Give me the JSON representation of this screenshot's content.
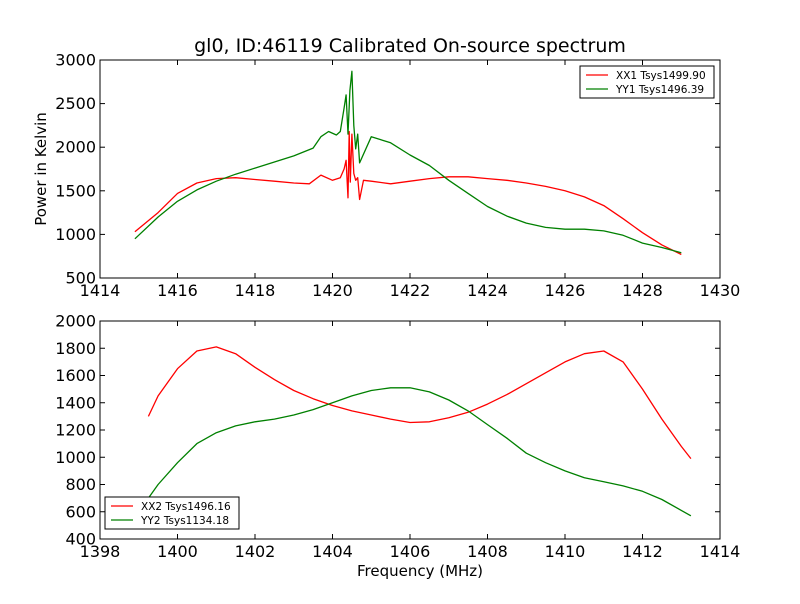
{
  "figure": {
    "title": "gl0, ID:46119 Calibrated On-source spectrum"
  },
  "chart_data": [
    {
      "type": "line",
      "xlabel": "",
      "ylabel": "Power in Kelvin",
      "xlim": [
        1414,
        1430
      ],
      "ylim": [
        500,
        3000
      ],
      "xticks": [
        1414,
        1416,
        1418,
        1420,
        1422,
        1424,
        1426,
        1428,
        1430
      ],
      "yticks": [
        500,
        1000,
        1500,
        2000,
        2500,
        3000
      ],
      "legend_position": "top-right",
      "grid": false,
      "series": [
        {
          "name": "XX1 Tsys1499.90",
          "color": "#ff0000",
          "x": [
            1414.9,
            1415.5,
            1416.0,
            1416.5,
            1417.0,
            1417.5,
            1418.0,
            1418.5,
            1419.0,
            1419.4,
            1419.7,
            1420.0,
            1420.2,
            1420.3,
            1420.35,
            1420.4,
            1420.43,
            1420.46,
            1420.5,
            1420.55,
            1420.6,
            1420.65,
            1420.7,
            1420.8,
            1421.0,
            1421.5,
            1422.0,
            1422.5,
            1423.0,
            1423.5,
            1424.0,
            1424.5,
            1425.0,
            1425.5,
            1426.0,
            1426.5,
            1427.0,
            1427.5,
            1428.0,
            1428.5,
            1429.0
          ],
          "y": [
            1030,
            1250,
            1470,
            1590,
            1640,
            1650,
            1630,
            1610,
            1590,
            1580,
            1680,
            1620,
            1650,
            1750,
            1850,
            1420,
            2180,
            1600,
            2150,
            1700,
            1620,
            1650,
            1400,
            1620,
            1610,
            1580,
            1610,
            1640,
            1660,
            1660,
            1640,
            1620,
            1590,
            1550,
            1500,
            1430,
            1330,
            1180,
            1020,
            880,
            770
          ]
        },
        {
          "name": "YY1 Tsys1496.39",
          "color": "#008000",
          "x": [
            1414.9,
            1415.5,
            1416.0,
            1416.5,
            1417.0,
            1417.5,
            1418.0,
            1418.5,
            1419.0,
            1419.5,
            1419.7,
            1419.9,
            1420.1,
            1420.2,
            1420.3,
            1420.35,
            1420.4,
            1420.45,
            1420.5,
            1420.55,
            1420.6,
            1420.65,
            1420.7,
            1421.0,
            1421.5,
            1422.0,
            1422.5,
            1423.0,
            1423.5,
            1424.0,
            1424.5,
            1425.0,
            1425.5,
            1426.0,
            1426.5,
            1427.0,
            1427.5,
            1428.0,
            1428.5,
            1429.0
          ],
          "y": [
            950,
            1200,
            1380,
            1510,
            1610,
            1690,
            1760,
            1830,
            1900,
            1990,
            2120,
            2180,
            2140,
            2180,
            2450,
            2600,
            2150,
            2650,
            2870,
            2250,
            1980,
            2150,
            1820,
            2120,
            2050,
            1910,
            1790,
            1620,
            1470,
            1320,
            1210,
            1130,
            1080,
            1060,
            1060,
            1040,
            990,
            900,
            850,
            790
          ]
        }
      ]
    },
    {
      "type": "line",
      "xlabel": "Frequency (MHz)",
      "ylabel": "",
      "xlim": [
        1398,
        1414
      ],
      "ylim": [
        400,
        2000
      ],
      "xticks": [
        1398,
        1400,
        1402,
        1404,
        1406,
        1408,
        1410,
        1412,
        1414
      ],
      "yticks": [
        400,
        600,
        800,
        1000,
        1200,
        1400,
        1600,
        1800,
        2000
      ],
      "legend_position": "bottom-left",
      "grid": false,
      "series": [
        {
          "name": "XX2 Tsys1496.16",
          "color": "#ff0000",
          "x": [
            1399.25,
            1399.5,
            1400.0,
            1400.5,
            1401.0,
            1401.5,
            1402.0,
            1402.5,
            1403.0,
            1403.5,
            1404.0,
            1404.5,
            1405.0,
            1405.5,
            1406.0,
            1406.5,
            1407.0,
            1407.5,
            1408.0,
            1408.5,
            1409.0,
            1409.5,
            1410.0,
            1410.5,
            1411.0,
            1411.5,
            1412.0,
            1412.5,
            1413.0,
            1413.25
          ],
          "y": [
            1300,
            1450,
            1650,
            1780,
            1810,
            1760,
            1660,
            1570,
            1490,
            1430,
            1380,
            1340,
            1310,
            1280,
            1255,
            1260,
            1290,
            1330,
            1390,
            1460,
            1540,
            1620,
            1700,
            1760,
            1780,
            1700,
            1500,
            1280,
            1080,
            990
          ]
        },
        {
          "name": "YY2 Tsys1134.18",
          "color": "#008000",
          "x": [
            1399.25,
            1399.5,
            1400.0,
            1400.5,
            1401.0,
            1401.5,
            1402.0,
            1402.5,
            1403.0,
            1403.5,
            1404.0,
            1404.5,
            1405.0,
            1405.5,
            1406.0,
            1406.5,
            1407.0,
            1407.5,
            1408.0,
            1408.5,
            1409.0,
            1409.5,
            1410.0,
            1410.5,
            1411.0,
            1411.5,
            1412.0,
            1412.5,
            1413.0,
            1413.25
          ],
          "y": [
            700,
            800,
            960,
            1100,
            1180,
            1230,
            1260,
            1280,
            1310,
            1350,
            1400,
            1450,
            1490,
            1510,
            1510,
            1480,
            1420,
            1340,
            1240,
            1140,
            1030,
            960,
            900,
            850,
            820,
            790,
            750,
            690,
            610,
            570
          ]
        }
      ]
    }
  ]
}
